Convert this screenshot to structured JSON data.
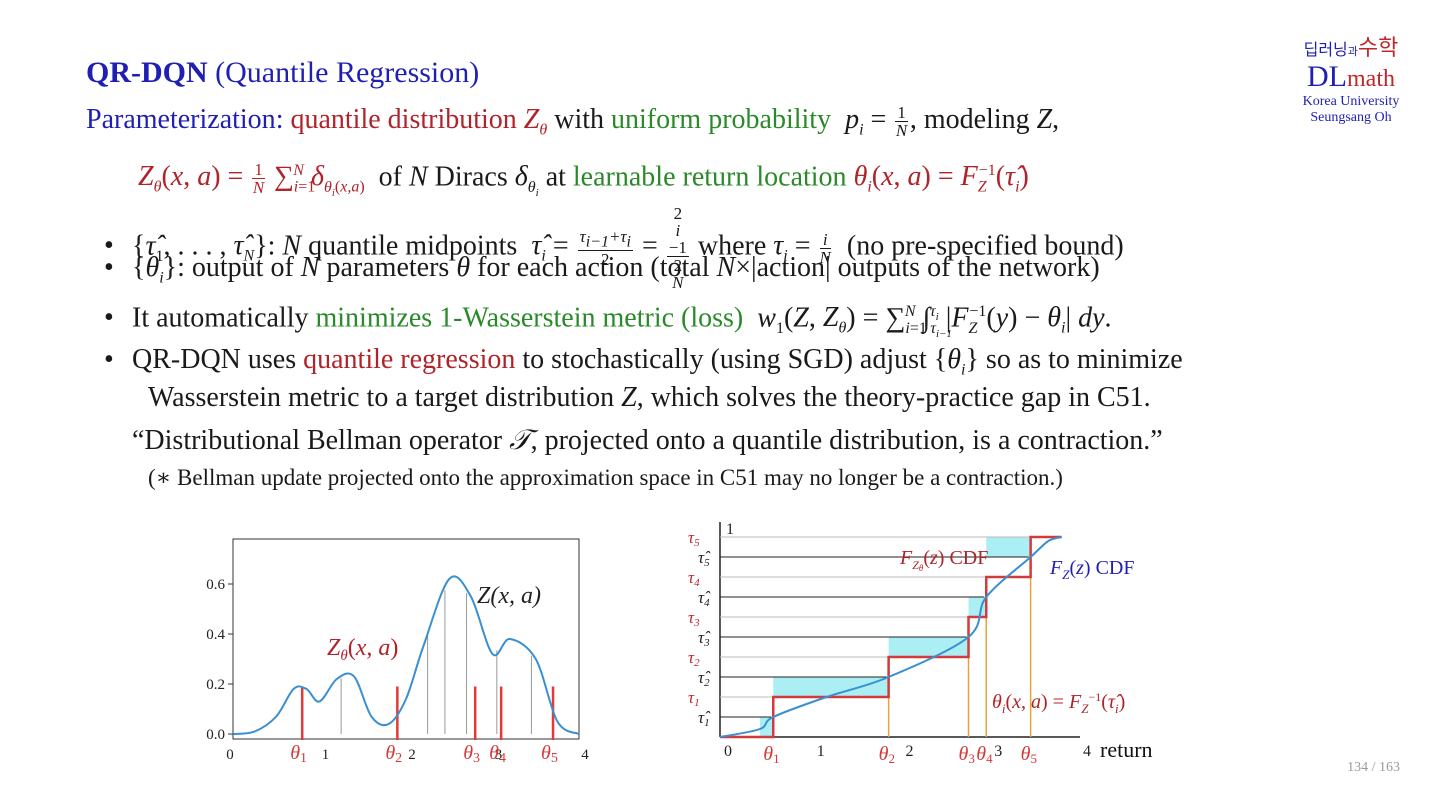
{
  "title": {
    "bold": "QR-DQN",
    "rest": "(Quantile Regression)"
  },
  "logo": {
    "korean_a": "딥러닝",
    "korean_b": "과",
    "korean_c": "수학",
    "dl": "DL",
    "math": "math",
    "university": "Korea University",
    "author": "Seungsang Oh"
  },
  "param": {
    "label": "Parameterization",
    "colon": ":",
    "qdist": "quantile distribution",
    "with": "with",
    "uniform": "uniform probability",
    "modeling": ", modeling"
  },
  "line2": {
    "ofn": "of",
    "diracs": "Diracs",
    "at": "at",
    "learnable": "learnable return location"
  },
  "bullets": [
    {
      "a": ": ",
      "b": "quantile midpoints",
      "c": "where",
      "d": "(no pre-specified bound)"
    },
    {
      "a": ": output of",
      "b": "parameters",
      "c": "for each action (total",
      "d": "×|action| outputs of the network)"
    },
    {
      "a": "It automatically",
      "b": "minimizes 1-Wasserstein metric (loss)"
    },
    {
      "a": "QR-DQN uses",
      "b": "quantile regression",
      "c": "to stochastically (using SGD) adjust",
      "d": "so as to minimize"
    }
  ],
  "cont": {
    "a": "Wasserstein metric to a target distribution",
    "b": ", which solves the theory-practice gap in C51."
  },
  "quote": {
    "a": "“Distributional Bellman operator",
    "b": ", projected onto a quantile distribution, is a contraction.”"
  },
  "note": "(∗ Bellman update projected onto the approximation space in C51 may no longer be a contraction.)",
  "page": "134 / 163",
  "chart_data": [
    {
      "type": "line",
      "x": [
        0,
        0.25,
        0.5,
        0.7,
        0.85,
        1.0,
        1.2,
        1.4,
        1.6,
        1.8,
        2.0,
        2.2,
        2.5,
        2.75,
        3.0,
        3.2,
        3.5,
        3.75,
        4.0
      ],
      "series": [
        {
          "name": "Z(x, a)",
          "values": [
            0.0,
            0.01,
            0.07,
            0.18,
            0.18,
            0.13,
            0.22,
            0.23,
            0.07,
            0.04,
            0.14,
            0.35,
            0.62,
            0.55,
            0.32,
            0.38,
            0.3,
            0.05,
            0.0
          ]
        }
      ],
      "quantile_locations": [
        0.8,
        1.9,
        2.8,
        3.1,
        3.7
      ],
      "quantile_labels": [
        "θ",
        "θ",
        "θ",
        "θ",
        "θ"
      ],
      "quantile_indices": [
        "1",
        "2",
        "3",
        "4",
        "5"
      ],
      "annotation_z": "Z(x, a)",
      "annotation_ztheta": "Z",
      "xticks": [
        "0",
        "1",
        "2",
        "3",
        "4"
      ],
      "yticks": [
        "0.0",
        "0.2",
        "0.4",
        "0.6"
      ],
      "xlim": [
        0,
        4
      ],
      "ylim": [
        -0.02,
        0.78
      ],
      "grid": false
    },
    {
      "type": "line",
      "theta": [
        0.6,
        1.9,
        2.8,
        3.0,
        3.5
      ],
      "tau": [
        0.2,
        0.4,
        0.6,
        0.8,
        1.0
      ],
      "tau_hat": [
        0.1,
        0.3,
        0.5,
        0.7,
        0.9
      ],
      "tau_labels": [
        "τ",
        "τ",
        "τ",
        "τ",
        "τ"
      ],
      "tau_hat_labels": [
        "τ̂",
        "τ̂",
        "τ̂",
        "τ̂",
        "τ̂"
      ],
      "indices": [
        "1",
        "2",
        "3",
        "4",
        "5"
      ],
      "theta_labels": [
        "θ",
        "θ",
        "θ",
        "θ",
        "θ"
      ],
      "xticks": [
        "0",
        "1",
        "2",
        "3",
        "4"
      ],
      "ytop_label": "1",
      "xlabel": "return",
      "label_fz": "F",
      "label_fz_cdf": "CDF",
      "label_fztheta": "F",
      "label_fztheta_cdf": "CDF",
      "label_theta_eq": "θ",
      "xlim": [
        0,
        4
      ],
      "ylim": [
        0,
        1
      ]
    }
  ]
}
